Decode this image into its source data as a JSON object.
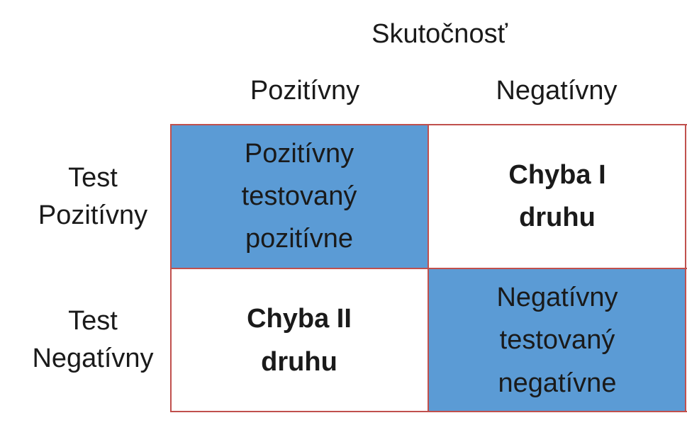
{
  "header": {
    "actual_label": "Skutočnosť",
    "columns": [
      "Pozitívny",
      "Negatívny"
    ]
  },
  "rows": [
    {
      "line1": "Test",
      "line2": "Pozitívny"
    },
    {
      "line1": "Test",
      "line2": "Negatívny"
    }
  ],
  "cells": {
    "true_positive": [
      "Pozitívny",
      "testovaný",
      "pozitívne"
    ],
    "false_positive": [
      "Chyba I",
      "druhu"
    ],
    "false_negative": [
      "Chyba II",
      "druhu"
    ],
    "true_negative": [
      "Negatívny",
      "testovaný",
      "negatívne"
    ]
  },
  "colors": {
    "highlight": "#5b9bd5",
    "border": "#c0504d"
  }
}
